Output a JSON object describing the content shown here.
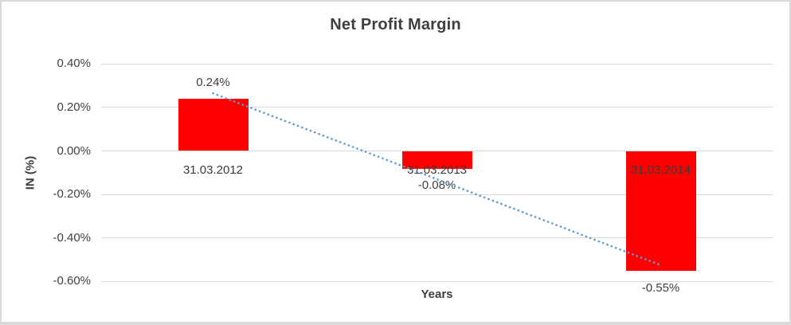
{
  "window": {
    "background": "#ffffff",
    "border_color": "#d9d9d9"
  },
  "chart_data": {
    "type": "bar",
    "title": "Net Profit Margin",
    "xlabel": "Years",
    "ylabel": "IN (%)",
    "categories": [
      "31.03.2012",
      "31.03.2013",
      "31.03.2014"
    ],
    "values": [
      0.24,
      -0.08,
      -0.55
    ],
    "data_labels": [
      "0.24%",
      "-0.08%",
      "-0.55%"
    ],
    "y_ticks": [
      {
        "label": "0.40%",
        "value": 0.4
      },
      {
        "label": "0.20%",
        "value": 0.2
      },
      {
        "label": "0.00%",
        "value": 0.0
      },
      {
        "label": "-0.20%",
        "value": -0.2
      },
      {
        "label": "-0.40%",
        "value": -0.4
      },
      {
        "label": "-0.60%",
        "value": -0.6
      }
    ],
    "ylim": [
      -0.6,
      0.4
    ],
    "grid": true,
    "legend": "none",
    "colors": {
      "bar": "#ff0000",
      "gridline": "#d9d9d9",
      "text": "#404040",
      "trendline": "#5b9bd5"
    },
    "trendline": {
      "type": "linear",
      "style": "dotted",
      "start_value": 0.265,
      "end_value": -0.525
    }
  }
}
